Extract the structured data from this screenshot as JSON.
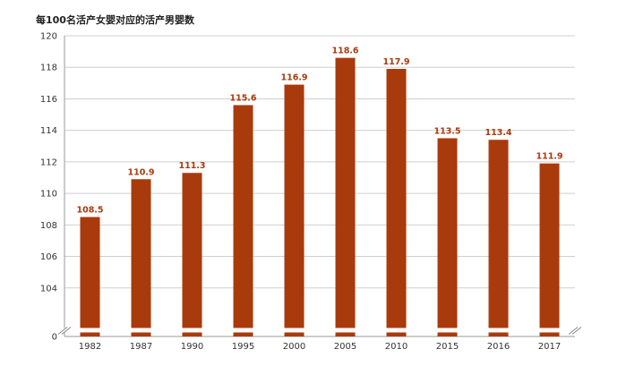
{
  "chart_data": {
    "type": "bar",
    "title": "每100名活产女婴对应的活产男婴数",
    "xlabel": "",
    "ylabel": "",
    "categories": [
      "1982",
      "1987",
      "1990",
      "1995",
      "2000",
      "2005",
      "2010",
      "2015",
      "2016",
      "2017"
    ],
    "values": [
      108.5,
      110.9,
      111.3,
      115.6,
      116.9,
      118.6,
      117.9,
      113.5,
      113.4,
      111.9
    ],
    "data_labels": [
      "108.5",
      "110.9",
      "111.3",
      "115.6",
      "116.9",
      "118.6",
      "117.9",
      "113.5",
      "113.4",
      "111.9"
    ],
    "ylim": [
      102,
      120
    ],
    "y_ticks": [
      0,
      104,
      106,
      108,
      110,
      112,
      114,
      116,
      118,
      120
    ],
    "y_ticks_labels": [
      "0",
      "104",
      "106",
      "108",
      "110",
      "112",
      "114",
      "116",
      "118",
      "120"
    ],
    "axis_break": true,
    "grid": true,
    "legend": "none",
    "bar_color": "#a93a0c",
    "label_color": "#a93a0c"
  }
}
